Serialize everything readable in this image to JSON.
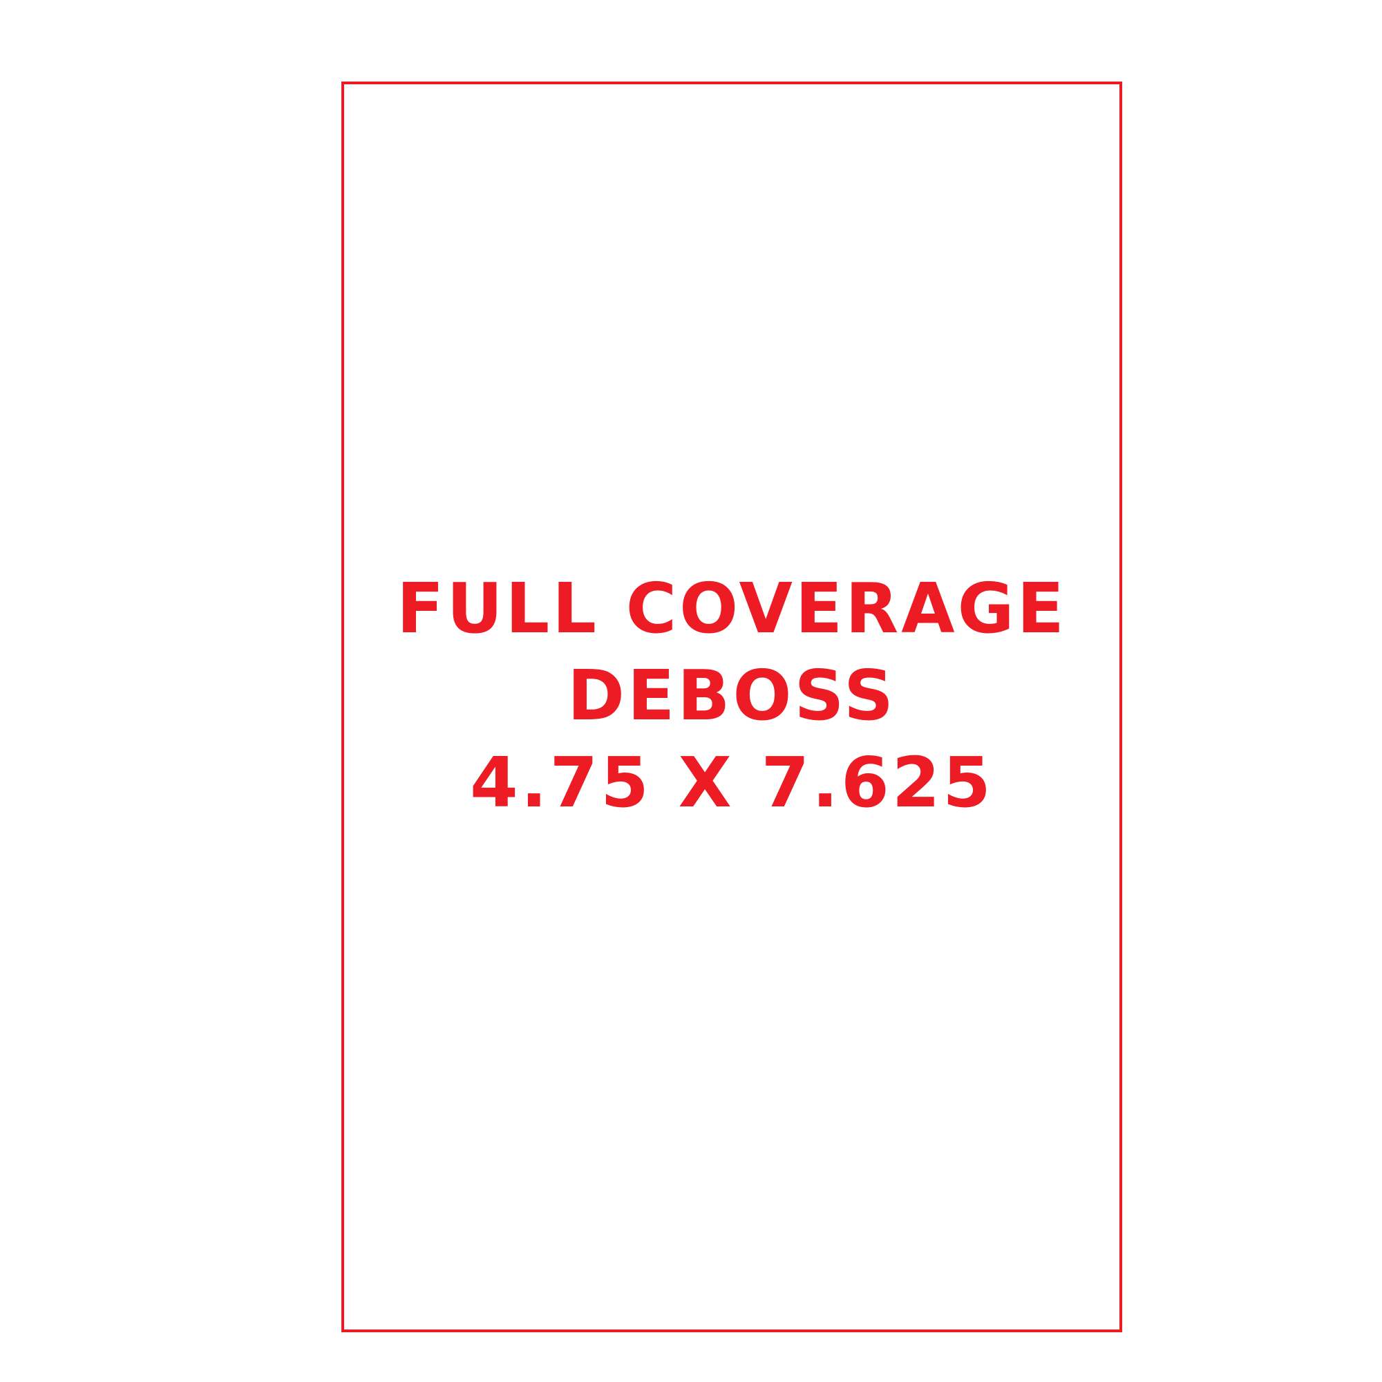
{
  "colors": {
    "accent": "#ed1c24",
    "background": "#ffffff"
  },
  "label": {
    "line1": "FULL COVERAGE",
    "line2": "DEBOSS",
    "line3": "4.75 X 7.625"
  }
}
